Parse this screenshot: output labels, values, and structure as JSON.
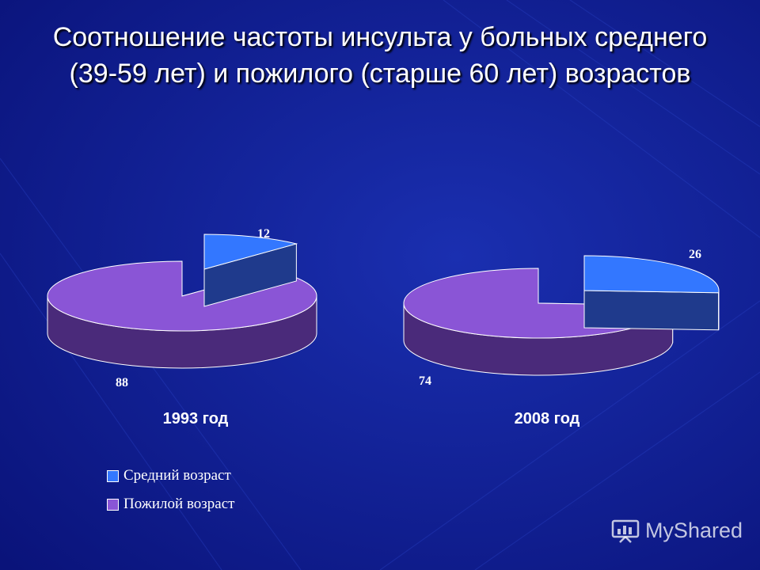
{
  "title": "Соотношение частоты инсульта у больных среднего (39-59 лет) и пожилого (старше 60 лет) возрастов",
  "watermark": "MyShared",
  "colors": {
    "middle_top": "#3377ff",
    "middle_side": "#1f3a8c",
    "elderly_top": "#8a55d6",
    "elderly_side": "#4a2a7a",
    "background": "#0d1a8a"
  },
  "chart_data": [
    {
      "type": "pie",
      "year_label": "1993 год",
      "slices": [
        {
          "name": "Средний возраст",
          "value": 12,
          "label": "12"
        },
        {
          "name": "Пожилой возраст",
          "value": 88,
          "label": "88"
        }
      ]
    },
    {
      "type": "pie",
      "year_label": "2008 год",
      "slices": [
        {
          "name": "Средний возраст",
          "value": 26,
          "label": "26"
        },
        {
          "name": "Пожилой возраст",
          "value": 74,
          "label": "74"
        }
      ]
    }
  ],
  "legend": {
    "placement": "bottom-left",
    "items": [
      {
        "label": "Средний возраст",
        "color": "#3377ff"
      },
      {
        "label": "Пожилой возраст",
        "color": "#8a55d6"
      }
    ]
  }
}
